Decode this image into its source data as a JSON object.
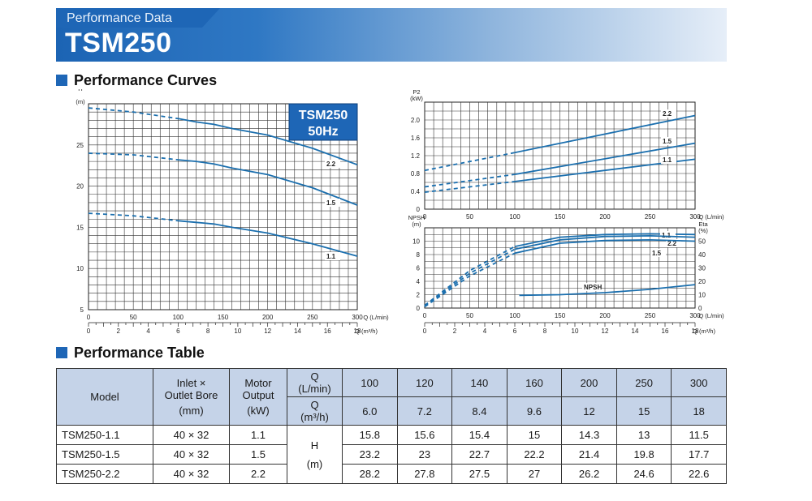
{
  "header": {
    "subtitle": "Performance Data",
    "title": "TSM250"
  },
  "sections": {
    "curves": "Performance Curves",
    "table": "Performance Table"
  },
  "badge": {
    "line1": "TSM250",
    "line2": "50Hz"
  },
  "colors": {
    "curve": "#1b6fae",
    "header_blue": "#1e66b6",
    "table_header": "#c5d3e8"
  },
  "chart_data": [
    {
      "id": "head",
      "type": "line",
      "ylabel": "H\n(m)",
      "xlabel": "Q (L/min)",
      "x2label": "Q (m³/h)",
      "xlim": [
        0,
        300
      ],
      "ylim": [
        5,
        30
      ],
      "xticks": [
        "0",
        "50",
        "100",
        "150",
        "200",
        "250",
        "300"
      ],
      "x2ticks": [
        "0",
        "2",
        "4",
        "6",
        "8",
        "10",
        "12",
        "14",
        "16",
        "18"
      ],
      "yticks": [
        "5",
        "10",
        "15",
        "20",
        "25"
      ],
      "series": [
        {
          "name": "2.2",
          "dashed_to": 100,
          "x": [
            0,
            50,
            100,
            120,
            140,
            160,
            200,
            250,
            300
          ],
          "values": [
            29.5,
            29.0,
            28.2,
            27.8,
            27.5,
            27.0,
            26.2,
            24.6,
            22.6
          ]
        },
        {
          "name": "1.5",
          "dashed_to": 100,
          "x": [
            0,
            50,
            100,
            120,
            140,
            160,
            200,
            250,
            300
          ],
          "values": [
            24.0,
            23.8,
            23.2,
            23.0,
            22.7,
            22.2,
            21.4,
            19.8,
            17.7
          ]
        },
        {
          "name": "1.1",
          "dashed_to": 100,
          "x": [
            0,
            50,
            100,
            120,
            140,
            160,
            200,
            250,
            300
          ],
          "values": [
            16.7,
            16.4,
            15.8,
            15.6,
            15.4,
            15.0,
            14.3,
            13.0,
            11.5
          ]
        }
      ]
    },
    {
      "id": "power",
      "type": "line",
      "ylabel": "P2\n(kW)",
      "xlabel": "Q (L/min)",
      "xlim": [
        0,
        300
      ],
      "ylim": [
        0,
        2.4
      ],
      "xticks": [
        "0",
        "50",
        "100",
        "150",
        "200",
        "250",
        "300"
      ],
      "yticks": [
        "0",
        "0.4",
        "0.8",
        "1.2",
        "1.6",
        "2.0"
      ],
      "series": [
        {
          "name": "2.2",
          "dashed_to": 100,
          "x": [
            0,
            100,
            300
          ],
          "values": [
            0.87,
            1.27,
            2.1
          ]
        },
        {
          "name": "1.5",
          "dashed_to": 100,
          "x": [
            0,
            100,
            300
          ],
          "values": [
            0.5,
            0.78,
            1.48
          ]
        },
        {
          "name": "1.1",
          "dashed_to": 100,
          "x": [
            0,
            100,
            300
          ],
          "values": [
            0.38,
            0.62,
            1.12
          ]
        }
      ]
    },
    {
      "id": "efficiency",
      "type": "line",
      "ylabel": "NPSH\n(m)",
      "y2label": "Eta\n(%)",
      "xlabel": "Q (L/min)",
      "x2label": "Q (m³/h)",
      "xlim": [
        0,
        300
      ],
      "ylim": [
        0,
        12
      ],
      "y2lim": [
        0,
        60
      ],
      "xticks": [
        "0",
        "50",
        "100",
        "150",
        "200",
        "250",
        "300"
      ],
      "x2ticks": [
        "0",
        "2",
        "4",
        "6",
        "8",
        "10",
        "12",
        "14",
        "16",
        "18"
      ],
      "yticks": [
        "0",
        "2",
        "4",
        "6",
        "8",
        "10"
      ],
      "y2ticks": [
        "0",
        "10",
        "20",
        "30",
        "40",
        "50"
      ],
      "series": [
        {
          "name": "1.1",
          "axis": "y2",
          "dashed_to": 100,
          "x": [
            0,
            50,
            100,
            150,
            200,
            250,
            300
          ],
          "values": [
            2,
            28,
            46,
            53,
            55,
            55.5,
            55
          ]
        },
        {
          "name": "2.2",
          "axis": "y2",
          "dashed_to": 100,
          "x": [
            0,
            50,
            100,
            150,
            200,
            250,
            300
          ],
          "values": [
            1.5,
            26,
            44,
            51,
            53.5,
            54,
            53
          ]
        },
        {
          "name": "1.5",
          "axis": "y2",
          "dashed_to": 100,
          "x": [
            0,
            50,
            100,
            150,
            200,
            250,
            300
          ],
          "values": [
            1,
            24,
            41,
            48.5,
            50.5,
            51,
            50
          ]
        },
        {
          "name": "NPSH",
          "axis": "y",
          "dashed_to": 0,
          "x": [
            105,
            150,
            200,
            250,
            300
          ],
          "values": [
            1.9,
            2.0,
            2.3,
            2.8,
            3.5
          ]
        }
      ]
    }
  ],
  "table": {
    "headers": {
      "model": "Model",
      "inlet": [
        "Inlet ×",
        "Outlet Bore",
        "(mm)"
      ],
      "motor": [
        "Motor",
        "Output",
        "(kW)"
      ],
      "q_lmin": [
        "Q",
        "(L/min)"
      ],
      "q_m3h": [
        "Q",
        "(m³/h)"
      ],
      "h": [
        "H",
        "(m)"
      ]
    },
    "flows_lmin": [
      "100",
      "120",
      "140",
      "160",
      "200",
      "250",
      "300"
    ],
    "flows_m3h": [
      "6.0",
      "7.2",
      "8.4",
      "9.6",
      "12",
      "15",
      "18"
    ],
    "rows": [
      {
        "model": "TSM250-1.1",
        "bore": "40 × 32",
        "output": "1.1",
        "heads": [
          "15.8",
          "15.6",
          "15.4",
          "15",
          "14.3",
          "13",
          "11.5"
        ]
      },
      {
        "model": "TSM250-1.5",
        "bore": "40 × 32",
        "output": "1.5",
        "heads": [
          "23.2",
          "23",
          "22.7",
          "22.2",
          "21.4",
          "19.8",
          "17.7"
        ]
      },
      {
        "model": "TSM250-2.2",
        "bore": "40 × 32",
        "output": "2.2",
        "heads": [
          "28.2",
          "27.8",
          "27.5",
          "27",
          "26.2",
          "24.6",
          "22.6"
        ]
      }
    ]
  }
}
